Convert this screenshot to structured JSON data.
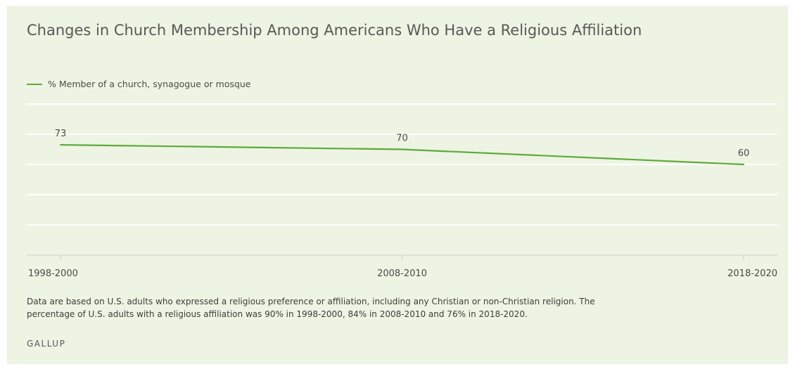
{
  "chart_data": {
    "type": "line",
    "title": "Changes in Church Membership Among Americans Who Have a Religious Affiliation",
    "categories": [
      "1998-2000",
      "2008-2010",
      "2018-2020"
    ],
    "series": [
      {
        "name": "% Member of a church, synagogue or mosque",
        "values": [
          73,
          70,
          60
        ],
        "color": "#5daa3c"
      }
    ],
    "ylim": [
      0,
      100
    ],
    "grid": true,
    "legend": "top-left",
    "xlabel": "",
    "ylabel": ""
  },
  "footnote": "Data are based on U.S. adults who expressed a religious preference or affiliation, including any Christian or non-Christian religion. The percentage of U.S. adults with a religious affiliation was 90% in 1998-2000, 84% in 2008-2010 and 76% in 2018-2020.",
  "source": "GALLUP"
}
